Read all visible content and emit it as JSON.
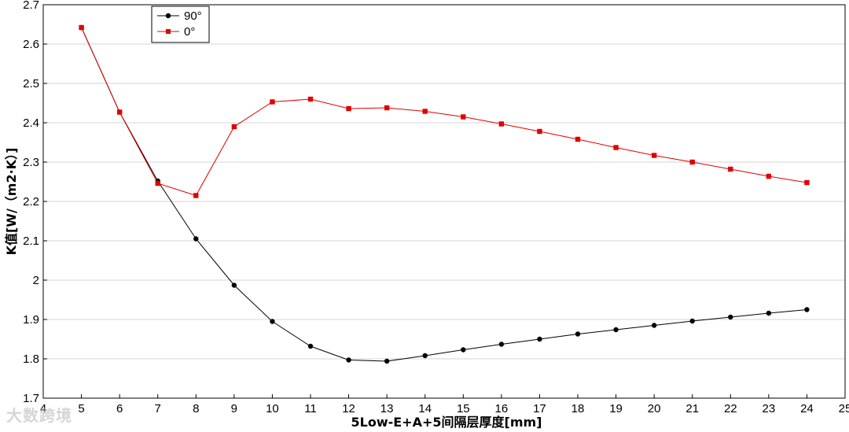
{
  "chart_data": {
    "type": "line",
    "title": "",
    "xlabel": "5Low-E+A+5间隔层厚度[mm]",
    "ylabel": "K值[W/（m2·K）]",
    "xlim": [
      4,
      25
    ],
    "ylim": [
      1.7,
      2.7
    ],
    "x_ticks": [
      "4",
      "5",
      "6",
      "7",
      "8",
      "9",
      "10",
      "11",
      "12",
      "13",
      "14",
      "15",
      "16",
      "17",
      "18",
      "19",
      "20",
      "21",
      "22",
      "23",
      "24",
      "25"
    ],
    "y_ticks": [
      "1.7",
      "1.8",
      "1.9",
      "2",
      "2.1",
      "2.2",
      "2.3",
      "2.4",
      "2.5",
      "2.6",
      "2.7"
    ],
    "grid": "horizontal",
    "legend_position": "top-left",
    "x": [
      5,
      6,
      7,
      8,
      9,
      10,
      11,
      12,
      13,
      14,
      15,
      16,
      17,
      18,
      19,
      20,
      21,
      22,
      23,
      24
    ],
    "series": [
      {
        "name": "90°",
        "color": "#000000",
        "marker": "circle",
        "values": [
          2.642,
          2.427,
          2.252,
          2.105,
          1.987,
          1.895,
          1.832,
          1.797,
          1.794,
          1.808,
          1.823,
          1.837,
          1.85,
          1.863,
          1.874,
          1.885,
          1.896,
          1.906,
          1.916,
          1.925
        ]
      },
      {
        "name": "0°",
        "color": "#e00000",
        "marker": "square",
        "values": [
          2.642,
          2.427,
          2.246,
          2.215,
          2.39,
          2.453,
          2.46,
          2.436,
          2.438,
          2.429,
          2.415,
          2.397,
          2.378,
          2.358,
          2.337,
          2.317,
          2.3,
          2.282,
          2.264,
          2.248
        ]
      }
    ]
  },
  "watermark": "大数跨境"
}
